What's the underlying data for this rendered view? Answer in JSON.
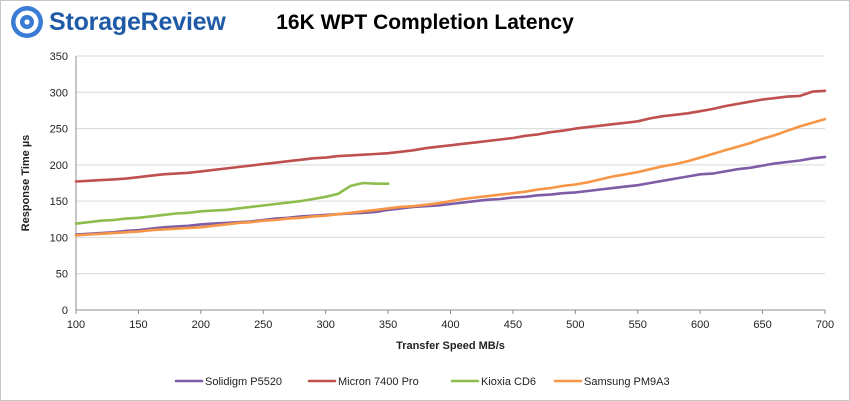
{
  "brand": {
    "name": "StorageReview",
    "colors": {
      "text": "#1f5aa6",
      "mark": "#3a7bd5"
    }
  },
  "chart_data": {
    "type": "line",
    "title": "16K WPT Completion Latency",
    "xlabel": "Transfer Speed MB/s",
    "ylabel": "Response Time µs",
    "xlim": [
      100,
      700
    ],
    "ylim": [
      0,
      350
    ],
    "x_ticks": [
      100,
      150,
      200,
      250,
      300,
      350,
      400,
      450,
      500,
      550,
      600,
      650,
      700
    ],
    "y_ticks": [
      0,
      50,
      100,
      150,
      200,
      250,
      300,
      350
    ],
    "grid": "horizontal",
    "legend_position": "bottom",
    "series": [
      {
        "name": "Solidigm P5520",
        "color": "#7e5da8",
        "x": [
          100,
          110,
          120,
          130,
          140,
          150,
          160,
          170,
          180,
          190,
          200,
          210,
          220,
          230,
          240,
          250,
          260,
          270,
          280,
          290,
          300,
          310,
          320,
          330,
          340,
          350,
          360,
          370,
          380,
          390,
          400,
          410,
          420,
          430,
          440,
          450,
          460,
          470,
          480,
          490,
          500,
          510,
          520,
          530,
          540,
          550,
          560,
          570,
          580,
          590,
          600,
          610,
          620,
          630,
          640,
          650,
          660,
          670,
          680,
          690,
          700
        ],
        "values": [
          104,
          105,
          106,
          107,
          109,
          110,
          112,
          114,
          115,
          116,
          118,
          119,
          120,
          121,
          122,
          124,
          126,
          127,
          129,
          130,
          131,
          132,
          133,
          134,
          135,
          138,
          140,
          142,
          143,
          144,
          146,
          148,
          150,
          152,
          153,
          155,
          156,
          158,
          159,
          161,
          162,
          164,
          166,
          168,
          170,
          172,
          175,
          178,
          181,
          184,
          187,
          188,
          191,
          194,
          196,
          199,
          202,
          204,
          206,
          209,
          211
        ]
      },
      {
        "name": "Micron 7400 Pro",
        "color": "#c0504d",
        "x": [
          100,
          110,
          120,
          130,
          140,
          150,
          160,
          170,
          180,
          190,
          200,
          210,
          220,
          230,
          240,
          250,
          260,
          270,
          280,
          290,
          300,
          310,
          320,
          330,
          340,
          350,
          360,
          370,
          380,
          390,
          400,
          410,
          420,
          430,
          440,
          450,
          460,
          470,
          480,
          490,
          500,
          510,
          520,
          530,
          540,
          550,
          560,
          570,
          580,
          590,
          600,
          610,
          620,
          630,
          640,
          650,
          660,
          670,
          680,
          690,
          700
        ],
        "values": [
          177,
          178,
          179,
          180,
          181,
          183,
          185,
          187,
          188,
          189,
          191,
          193,
          195,
          197,
          199,
          201,
          203,
          205,
          207,
          209,
          210,
          212,
          213,
          214,
          215,
          216,
          218,
          220,
          223,
          225,
          227,
          229,
          231,
          233,
          235,
          237,
          240,
          242,
          245,
          247,
          250,
          252,
          254,
          256,
          258,
          260,
          264,
          267,
          269,
          271,
          274,
          277,
          281,
          284,
          287,
          290,
          292,
          294,
          295,
          301,
          302
        ]
      },
      {
        "name": "Kioxia CD6",
        "color": "#8dbd4d",
        "x": [
          100,
          110,
          120,
          130,
          140,
          150,
          160,
          170,
          180,
          190,
          200,
          210,
          220,
          230,
          240,
          250,
          260,
          270,
          280,
          290,
          300,
          310,
          320,
          330,
          340,
          350
        ],
        "values": [
          119,
          121,
          123,
          124,
          126,
          127,
          129,
          131,
          133,
          134,
          136,
          137,
          138,
          140,
          142,
          144,
          146,
          148,
          150,
          153,
          156,
          160,
          171,
          175,
          174,
          174
        ]
      },
      {
        "name": "Samsung PM9A3",
        "color": "#f79646",
        "x": [
          100,
          110,
          120,
          130,
          140,
          150,
          160,
          170,
          180,
          190,
          200,
          210,
          220,
          230,
          240,
          250,
          260,
          270,
          280,
          290,
          300,
          310,
          320,
          330,
          340,
          350,
          360,
          370,
          380,
          390,
          400,
          410,
          420,
          430,
          440,
          450,
          460,
          470,
          480,
          490,
          500,
          510,
          520,
          530,
          540,
          550,
          560,
          570,
          580,
          590,
          600,
          610,
          620,
          630,
          640,
          650,
          660,
          670,
          680,
          690,
          700
        ],
        "values": [
          103,
          104,
          105,
          106,
          107,
          108,
          110,
          111,
          112,
          113,
          114,
          116,
          118,
          120,
          121,
          123,
          124,
          126,
          127,
          129,
          130,
          132,
          134,
          136,
          138,
          140,
          142,
          143,
          145,
          147,
          150,
          153,
          155,
          157,
          159,
          161,
          163,
          166,
          168,
          171,
          173,
          176,
          180,
          184,
          187,
          190,
          194,
          198,
          201,
          205,
          210,
          215,
          220,
          225,
          230,
          236,
          241,
          247,
          253,
          258,
          263
        ]
      }
    ]
  }
}
